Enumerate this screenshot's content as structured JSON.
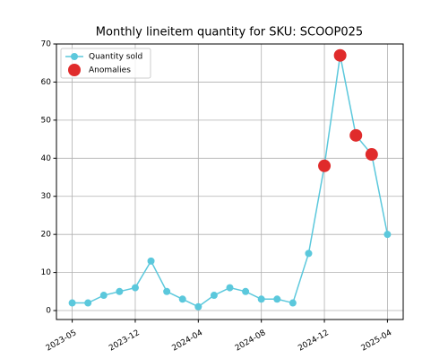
{
  "chart_data": {
    "type": "line",
    "title": "Monthly lineitem quantity for SKU: SCOOP025",
    "categories": [
      "2023-05",
      null,
      null,
      null,
      "2023-12",
      null,
      null,
      null,
      "2024-04",
      null,
      null,
      null,
      "2024-08",
      null,
      null,
      null,
      "2024-12",
      null,
      null,
      null,
      "2025-04"
    ],
    "series": [
      {
        "name": "Quantity sold",
        "type": "line",
        "color": "#5bc8dc",
        "values": [
          2,
          2,
          4,
          5,
          6,
          13,
          5,
          3,
          1,
          4,
          6,
          5,
          3,
          3,
          2,
          15,
          38,
          67,
          46,
          41,
          20
        ]
      },
      {
        "name": "Anomalies",
        "type": "scatter",
        "color": "#e02b2b",
        "values": [
          null,
          null,
          null,
          null,
          null,
          null,
          null,
          null,
          null,
          null,
          null,
          null,
          null,
          null,
          null,
          null,
          38,
          67,
          46,
          41,
          null
        ]
      }
    ],
    "ylim": [
      -2.35,
      70
    ],
    "yticks": [
      0,
      10,
      20,
      30,
      40,
      50,
      60,
      70
    ],
    "grid": true,
    "legend": "upper left"
  }
}
